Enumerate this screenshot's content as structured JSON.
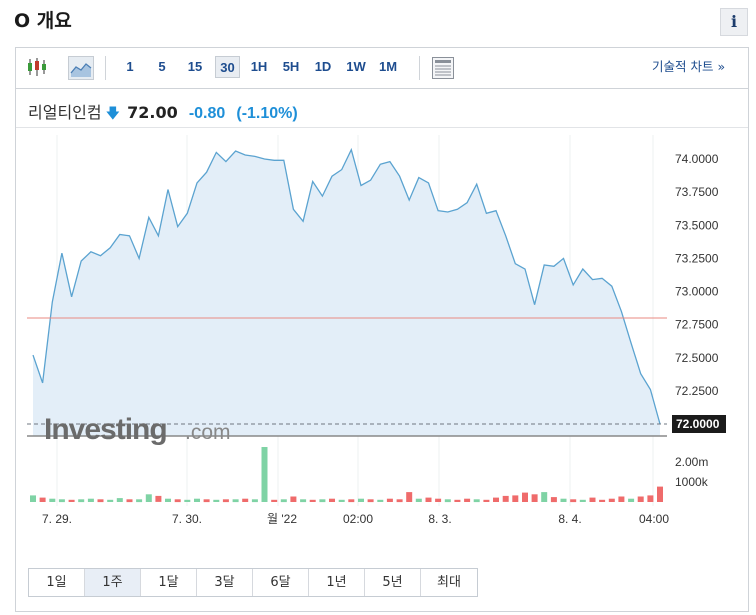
{
  "header": {
    "title": "O 개요",
    "info_label": "i"
  },
  "toolbar": {
    "intervals": [
      "1",
      "5",
      "15",
      "30",
      "1H",
      "5H",
      "1D",
      "1W",
      "1M"
    ],
    "selected_interval": "30",
    "technical_chart_label": "기술적 차트 »"
  },
  "quote": {
    "name": "리얼티인컴",
    "arrow": "🡇",
    "price": "72.00",
    "change": "-0.80",
    "change_pct": "(-1.10%)"
  },
  "watermark": {
    "brand": "Investing",
    "suffix": ".com"
  },
  "ranges": {
    "items": [
      "1일",
      "1주",
      "1달",
      "3달",
      "6달",
      "1년",
      "5년",
      "최대"
    ],
    "selected": "1주"
  },
  "colors": {
    "line": "#5ba3d0",
    "area": "#e3eef8",
    "ref_line": "#e88a82",
    "up": "#7fd3a5",
    "down": "#ef6b6b",
    "accent": "#1e8fd8"
  },
  "chart_data": {
    "type": "area",
    "price_ylim": [
      72.0,
      74.0
    ],
    "y_ticks": [
      "74.0000",
      "73.7500",
      "73.5000",
      "73.2500",
      "73.0000",
      "72.7500",
      "72.5000",
      "72.2500"
    ],
    "last_price_label": "72.0000",
    "reference_line": 72.8,
    "volume_ticks": [
      "2.00m",
      "1000k"
    ],
    "x_tick_labels": [
      "7. 29.",
      "7. 30.",
      "월 '22",
      "02:00",
      "8. 3.",
      "8. 4.",
      "04:00"
    ],
    "price": [
      72.52,
      72.31,
      72.92,
      73.29,
      72.96,
      73.23,
      73.3,
      73.27,
      73.33,
      73.43,
      73.42,
      73.25,
      73.56,
      73.42,
      73.77,
      73.49,
      73.59,
      73.82,
      73.9,
      74.05,
      73.98,
      74.06,
      74.03,
      74.02,
      74.0,
      73.99,
      73.99,
      73.62,
      73.53,
      73.83,
      73.72,
      73.87,
      73.92,
      74.07,
      73.8,
      73.84,
      73.96,
      73.98,
      73.87,
      73.69,
      73.86,
      73.82,
      73.61,
      73.6,
      73.62,
      73.67,
      73.81,
      73.59,
      73.61,
      73.42,
      73.21,
      73.17,
      72.9,
      73.2,
      73.19,
      73.25,
      73.05,
      73.17,
      73.09,
      73.1,
      73.04,
      72.85,
      72.61,
      72.38,
      72.26,
      72.0
    ],
    "volume": [
      {
        "v": 0.12,
        "up": true
      },
      {
        "v": 0.08,
        "up": false
      },
      {
        "v": 0.06,
        "up": true
      },
      {
        "v": 0.05,
        "up": true
      },
      {
        "v": 0.04,
        "up": false
      },
      {
        "v": 0.05,
        "up": true
      },
      {
        "v": 0.06,
        "up": true
      },
      {
        "v": 0.05,
        "up": false
      },
      {
        "v": 0.04,
        "up": true
      },
      {
        "v": 0.07,
        "up": true
      },
      {
        "v": 0.05,
        "up": false
      },
      {
        "v": 0.05,
        "up": true
      },
      {
        "v": 0.14,
        "up": true
      },
      {
        "v": 0.11,
        "up": false
      },
      {
        "v": 0.06,
        "up": true
      },
      {
        "v": 0.05,
        "up": false
      },
      {
        "v": 0.04,
        "up": true
      },
      {
        "v": 0.06,
        "up": true
      },
      {
        "v": 0.05,
        "up": false
      },
      {
        "v": 0.04,
        "up": true
      },
      {
        "v": 0.05,
        "up": false
      },
      {
        "v": 0.05,
        "up": true
      },
      {
        "v": 0.06,
        "up": false
      },
      {
        "v": 0.05,
        "up": true
      },
      {
        "v": 1.0,
        "up": true
      },
      {
        "v": 0.04,
        "up": false
      },
      {
        "v": 0.05,
        "up": true
      },
      {
        "v": 0.1,
        "up": false
      },
      {
        "v": 0.05,
        "up": true
      },
      {
        "v": 0.04,
        "up": false
      },
      {
        "v": 0.05,
        "up": true
      },
      {
        "v": 0.06,
        "up": false
      },
      {
        "v": 0.04,
        "up": true
      },
      {
        "v": 0.05,
        "up": false
      },
      {
        "v": 0.06,
        "up": true
      },
      {
        "v": 0.05,
        "up": false
      },
      {
        "v": 0.04,
        "up": true
      },
      {
        "v": 0.06,
        "up": false
      },
      {
        "v": 0.05,
        "up": false
      },
      {
        "v": 0.18,
        "up": false
      },
      {
        "v": 0.06,
        "up": true
      },
      {
        "v": 0.08,
        "up": false
      },
      {
        "v": 0.06,
        "up": false
      },
      {
        "v": 0.05,
        "up": true
      },
      {
        "v": 0.04,
        "up": false
      },
      {
        "v": 0.06,
        "up": false
      },
      {
        "v": 0.05,
        "up": true
      },
      {
        "v": 0.04,
        "up": false
      },
      {
        "v": 0.08,
        "up": false
      },
      {
        "v": 0.11,
        "up": false
      },
      {
        "v": 0.12,
        "up": false
      },
      {
        "v": 0.17,
        "up": false
      },
      {
        "v": 0.14,
        "up": false
      },
      {
        "v": 0.18,
        "up": true
      },
      {
        "v": 0.09,
        "up": false
      },
      {
        "v": 0.06,
        "up": true
      },
      {
        "v": 0.05,
        "up": false
      },
      {
        "v": 0.04,
        "up": true
      },
      {
        "v": 0.08,
        "up": false
      },
      {
        "v": 0.04,
        "up": false
      },
      {
        "v": 0.06,
        "up": false
      },
      {
        "v": 0.1,
        "up": false
      },
      {
        "v": 0.06,
        "up": true
      },
      {
        "v": 0.1,
        "up": false
      },
      {
        "v": 0.12,
        "up": false
      },
      {
        "v": 0.28,
        "up": false
      }
    ]
  }
}
